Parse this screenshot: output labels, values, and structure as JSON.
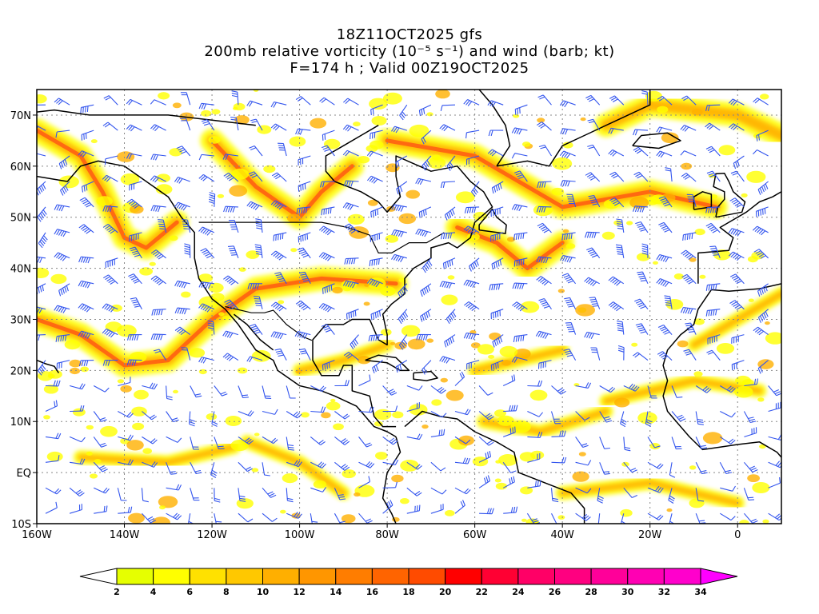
{
  "titles": {
    "line1": "18Z11OCT2025 gfs",
    "line2": "200mb relative vorticity (10⁻⁵ s⁻¹) and wind (barb; kt)",
    "line3": "F=174 h ; Valid 00Z19OCT2025"
  },
  "map": {
    "lon_range": [
      -160,
      10
    ],
    "lat_range": [
      -10,
      75
    ],
    "lon_ticks": [
      "160W",
      "140W",
      "120W",
      "100W",
      "80W",
      "60W",
      "40W",
      "20W",
      "0"
    ],
    "lat_ticks": [
      "10S",
      "EQ",
      "10N",
      "20N",
      "30N",
      "40N",
      "50N",
      "60N",
      "70N"
    ],
    "grid": true
  },
  "colorbar": {
    "levels": [
      2,
      4,
      6,
      8,
      10,
      12,
      14,
      16,
      18,
      20,
      22,
      24,
      26,
      28,
      30,
      32,
      34
    ],
    "colors": [
      "#e6ff00",
      "#ffff00",
      "#ffe100",
      "#ffc800",
      "#ffaf00",
      "#ff9600",
      "#ff7d00",
      "#ff6400",
      "#ff4b00",
      "#ff0000",
      "#ff0033",
      "#ff0066",
      "#ff0080",
      "#ff0099",
      "#ff00b3",
      "#ff00cc"
    ],
    "under_color": "#ffffff",
    "over_color": "#ff00ff"
  },
  "colors": {
    "barb": "#3355ee",
    "coast": "#000000",
    "vort_low": "#ffff00",
    "vort_mid": "#ffb000",
    "vort_high": "#ff5a14"
  }
}
